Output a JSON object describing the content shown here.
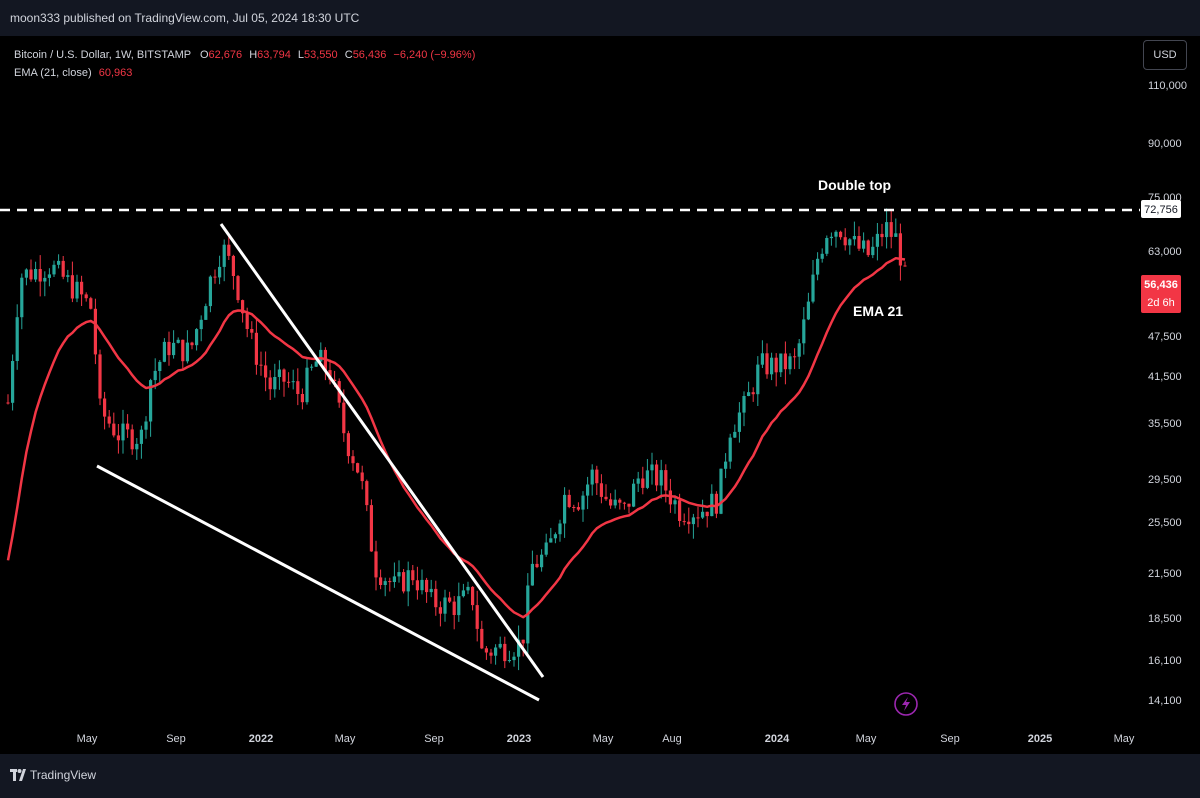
{
  "header": {
    "published": "moon333 published on TradingView.com, Jul 05, 2024 18:30 UTC"
  },
  "legend": {
    "symbol": "Bitcoin / U.S. Dollar, 1W, BITSTAMP",
    "o_label": "O",
    "o": "62,676",
    "h_label": "H",
    "h": "63,794",
    "l_label": "L",
    "l": "53,550",
    "c_label": "C",
    "c": "56,436",
    "change": "−6,240 (−9.96%)",
    "ema_label": "EMA (21, close)",
    "ema_value": "60,963"
  },
  "currency_button": "USD",
  "footer": {
    "brand": "TradingView"
  },
  "colors": {
    "up": "#26a69a",
    "down": "#f23645",
    "ema": "#f23645",
    "lines": "#ffffff",
    "background": "#000000",
    "frame": "#131722"
  },
  "chart_data": {
    "type": "candlestick",
    "title": "Bitcoin / U.S. Dollar, 1W, BITSTAMP",
    "y_scale": "log",
    "y_ticks": [
      "110,000",
      "90,000",
      "75,000",
      "63,000",
      "47,500",
      "41,500",
      "35,500",
      "29,500",
      "25,500",
      "21,500",
      "18,500",
      "16,100",
      "14,100"
    ],
    "x_ticks": [
      "May",
      "Sep",
      "2022",
      "May",
      "Sep",
      "2023",
      "May",
      "Aug",
      "2024",
      "May",
      "Sep",
      "2025",
      "May"
    ],
    "price_labels": {
      "level": "72,756",
      "last": "56,436",
      "countdown": "2d 6h"
    },
    "annotations": {
      "double_top": "Double top",
      "ema": "EMA 21"
    },
    "horizontal_level": 72756,
    "key_points": [
      {
        "date": "2021-04",
        "high": 64800,
        "low": 47000
      },
      {
        "date": "2021-07",
        "low": 29300
      },
      {
        "date": "2021-11",
        "high": 69000
      },
      {
        "date": "2022-06",
        "low": 17600
      },
      {
        "date": "2022-11",
        "low": 15500
      },
      {
        "date": "2023-06",
        "close": 30500
      },
      {
        "date": "2023-09",
        "low": 25000
      },
      {
        "date": "2024-03",
        "high": 73800
      },
      {
        "date": "2024-07",
        "close": 56436
      }
    ],
    "series": [
      {
        "name": "EMA (21, close)",
        "last": 60963
      }
    ]
  }
}
